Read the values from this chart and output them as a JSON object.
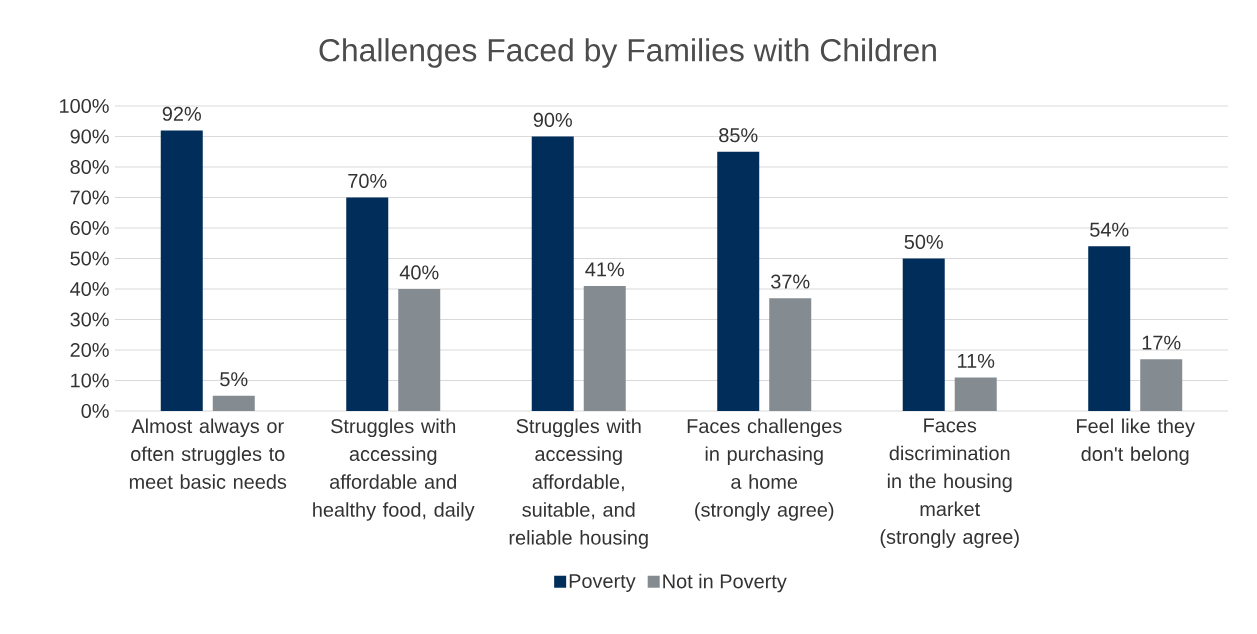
{
  "chart_data": {
    "type": "bar",
    "title": "Challenges Faced by Families with Children",
    "categories": [
      "Almost always or often struggles to meet basic needs",
      "Struggles with accessing affordable and healthy food, daily",
      "Struggles with accessing affordable, suitable, and reliable housing",
      "Faces challenges in purchasing a home (strongly agree)",
      "Faces discrimination in the housing market (strongly agree)",
      "Feel like they don't belong"
    ],
    "series": [
      {
        "name": "Poverty",
        "color": "#002d5a",
        "values": [
          92,
          70,
          90,
          85,
          50,
          54
        ],
        "value_labels": [
          "92%",
          "70%",
          "90%",
          "85%",
          "50%",
          "54%"
        ]
      },
      {
        "name": "Not in Poverty",
        "color": "#848c92",
        "values": [
          5,
          40,
          41,
          37,
          11,
          17
        ],
        "value_labels": [
          "5%",
          "40%",
          "41%",
          "37%",
          "11%",
          "17%"
        ]
      }
    ],
    "ylim": [
      0,
      100
    ],
    "yticks": [
      {
        "value": 0,
        "label": "0%"
      },
      {
        "value": 10,
        "label": "10%"
      },
      {
        "value": 20,
        "label": "20%"
      },
      {
        "value": 30,
        "label": "30%"
      },
      {
        "value": 40,
        "label": "40%"
      },
      {
        "value": 50,
        "label": "50%"
      },
      {
        "value": 60,
        "label": "60%"
      },
      {
        "value": 70,
        "label": "70%"
      },
      {
        "value": 80,
        "label": "80%"
      },
      {
        "value": 90,
        "label": "90%"
      },
      {
        "value": 100,
        "label": "100%"
      }
    ],
    "grid": "y",
    "legend": "bottom"
  }
}
